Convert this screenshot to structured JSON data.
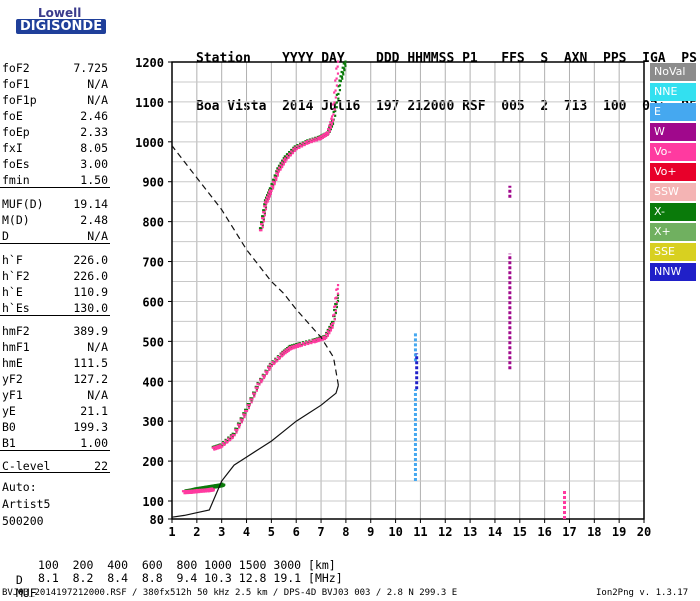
{
  "logo": {
    "line1": "Lowell",
    "line2": "DIGISONDE"
  },
  "header": {
    "line1": "Station    YYYY DAY    DDD HHMMSS P1   FFS  S  AXN  PPS  IGA  PS",
    "line2": "Boa Vista  2014 Jul16  197 212000 RSF  005  2  713  100  03+  B5"
  },
  "params": [
    {
      "k": "foF2",
      "v": "7.725"
    },
    {
      "k": "foF1",
      "v": "N/A"
    },
    {
      "k": "foF1p",
      "v": "N/A"
    },
    {
      "k": "foE",
      "v": "2.46"
    },
    {
      "k": "foEp",
      "v": "2.33"
    },
    {
      "k": "fxI",
      "v": "8.05"
    },
    {
      "k": "foEs",
      "v": "3.00"
    },
    {
      "k": "fmin",
      "v": "1.50"
    },
    {
      "k": "MUF(D)",
      "v": "19.14"
    },
    {
      "k": "M(D)",
      "v": "2.48"
    },
    {
      "k": "D",
      "v": "N/A"
    },
    {
      "k": "h`F",
      "v": "226.0"
    },
    {
      "k": "h`F2",
      "v": "226.0"
    },
    {
      "k": "h`E",
      "v": "110.9"
    },
    {
      "k": "h`Es",
      "v": "130.0"
    },
    {
      "k": "hmF2",
      "v": "389.9"
    },
    {
      "k": "hmF1",
      "v": "N/A"
    },
    {
      "k": "hmE",
      "v": "111.5"
    },
    {
      "k": "yF2",
      "v": "127.2"
    },
    {
      "k": "yF1",
      "v": "N/A"
    },
    {
      "k": "yE",
      "v": "21.1"
    },
    {
      "k": "B0",
      "v": "199.3"
    },
    {
      "k": "B1",
      "v": "1.00"
    },
    {
      "k": "C-level",
      "v": "22"
    }
  ],
  "auto": {
    "l1": "Auto:",
    "l2": "Artist5",
    "l3": "500200"
  },
  "legend": [
    {
      "name": "NoVal",
      "color": "#8c8c8c"
    },
    {
      "name": "NNE",
      "color": "#33e0f0"
    },
    {
      "name": "E",
      "color": "#45a8f0"
    },
    {
      "name": "W",
      "color": "#a0088c"
    },
    {
      "name": "Vo-",
      "color": "#ff3aa0"
    },
    {
      "name": "Vo+",
      "color": "#e8002a"
    },
    {
      "name": "SSW",
      "color": "#f4b4b4"
    },
    {
      "name": "X-",
      "color": "#0a7a0a"
    },
    {
      "name": "X+",
      "color": "#70b060"
    },
    {
      "name": "SSE",
      "color": "#d8d020"
    },
    {
      "name": "NNW",
      "color": "#2020c8"
    }
  ],
  "muf_table": {
    "d_label": "D",
    "d_vals": "100  200  400  600  800 1000 1500 3000 [km]",
    "m_label": "MUF",
    "m_vals": "8.1  8.2  8.4  8.8  9.4 10.3 12.8 19.1 [MHz]"
  },
  "info": "BVJ03_2014197212000.RSF / 380fx512h 50 kHz 2.5 km / DPS-4D BVJ03 003 / 2.8 N 299.3 E",
  "version": "Ion2Png v. 1.3.17",
  "chart_data": {
    "type": "scatter",
    "xlim": [
      1,
      20
    ],
    "ylim": [
      80,
      1200
    ],
    "x_ticks": [
      1,
      2,
      3,
      4,
      5,
      6,
      7,
      8,
      9,
      10,
      11,
      12,
      13,
      14,
      15,
      16,
      17,
      18,
      19,
      20
    ],
    "y_ticks": [
      80,
      100,
      200,
      300,
      400,
      500,
      600,
      700,
      800,
      900,
      1000,
      1100,
      1200
    ],
    "grid": true,
    "series": [
      {
        "name": "X-",
        "color": "#0a7a0a",
        "x": [
          2.7,
          3.0,
          3.5,
          4.0,
          4.5,
          5.0,
          5.5,
          5.8,
          6.2,
          6.8,
          7.2,
          7.5,
          7.7
        ],
        "y": [
          232,
          238,
          265,
          325,
          392,
          440,
          470,
          485,
          492,
          502,
          510,
          545,
          615
        ]
      },
      {
        "name": "Vo-",
        "color": "#ff3aa0",
        "x": [
          2.7,
          3.0,
          3.5,
          4.0,
          4.5,
          5.0,
          5.5,
          5.8,
          6.2,
          6.8,
          7.2,
          7.5,
          7.7
        ],
        "y": [
          230,
          236,
          262,
          322,
          390,
          438,
          468,
          482,
          490,
          500,
          508,
          540,
          640
        ]
      },
      {
        "name": "X-",
        "color": "#0a7a0a",
        "x": [
          4.6,
          4.8,
          5.0,
          5.3,
          5.6,
          6.0,
          6.5,
          7.0,
          7.3,
          7.5,
          7.8,
          8.0
        ],
        "y": [
          780,
          850,
          880,
          930,
          960,
          985,
          1000,
          1010,
          1020,
          1050,
          1150,
          1200
        ]
      },
      {
        "name": "Vo-",
        "color": "#ff3aa0",
        "x": [
          4.6,
          4.8,
          5.0,
          5.3,
          5.6,
          6.0,
          6.5,
          7.0,
          7.3,
          7.5,
          7.7
        ],
        "y": [
          775,
          845,
          875,
          925,
          955,
          982,
          998,
          1008,
          1020,
          1060,
          1200
        ]
      },
      {
        "name": "X-",
        "color": "#0a7a0a",
        "x": [
          1.6,
          1.8,
          2.0,
          2.2,
          2.4,
          2.6,
          2.8,
          3.0,
          3.1
        ],
        "y": [
          123,
          125,
          128,
          130,
          132,
          134,
          136,
          138,
          140
        ]
      },
      {
        "name": "Vo-",
        "color": "#ff3aa0",
        "x": [
          1.5,
          1.8,
          2.1,
          2.5,
          2.7
        ],
        "y": [
          121,
          122,
          124,
          126,
          128
        ]
      }
    ],
    "profile": {
      "x": [
        1.0,
        1.5,
        2.0,
        2.5,
        3.0,
        3.5,
        4.0,
        4.5,
        5.0,
        5.5,
        6.0,
        6.5,
        7.0,
        7.3,
        7.6,
        7.7
      ],
      "y": [
        82,
        84,
        87,
        90,
        150,
        190,
        210,
        230,
        250,
        275,
        300,
        320,
        340,
        355,
        370,
        390
      ]
    },
    "profile_top": {
      "x": [
        7.7,
        7.5,
        7.0,
        6.5,
        6.0,
        5.5,
        5.0,
        4.5,
        4.0,
        3.5,
        3.0,
        2.5,
        2.0,
        1.5,
        1.0
      ],
      "y": [
        390,
        460,
        510,
        545,
        580,
        620,
        650,
        690,
        730,
        780,
        830,
        870,
        910,
        950,
        990
      ]
    },
    "vertical_bars": [
      {
        "x": 10.8,
        "y": [
          450,
          520
        ],
        "color": "#45a8f0"
      },
      {
        "x": 10.85,
        "y": [
          380,
          470
        ],
        "color": "#2020c8"
      },
      {
        "x": 10.8,
        "y": [
          150,
          380
        ],
        "color": "#45a8f0"
      },
      {
        "x": 14.6,
        "y": [
          430,
          720
        ],
        "color": "#a0088c"
      },
      {
        "x": 14.6,
        "y": [
          860,
          890
        ],
        "color": "#a0088c"
      },
      {
        "x": 16.8,
        "y": [
          80,
          130
        ],
        "color": "#ff3aa0"
      }
    ]
  }
}
